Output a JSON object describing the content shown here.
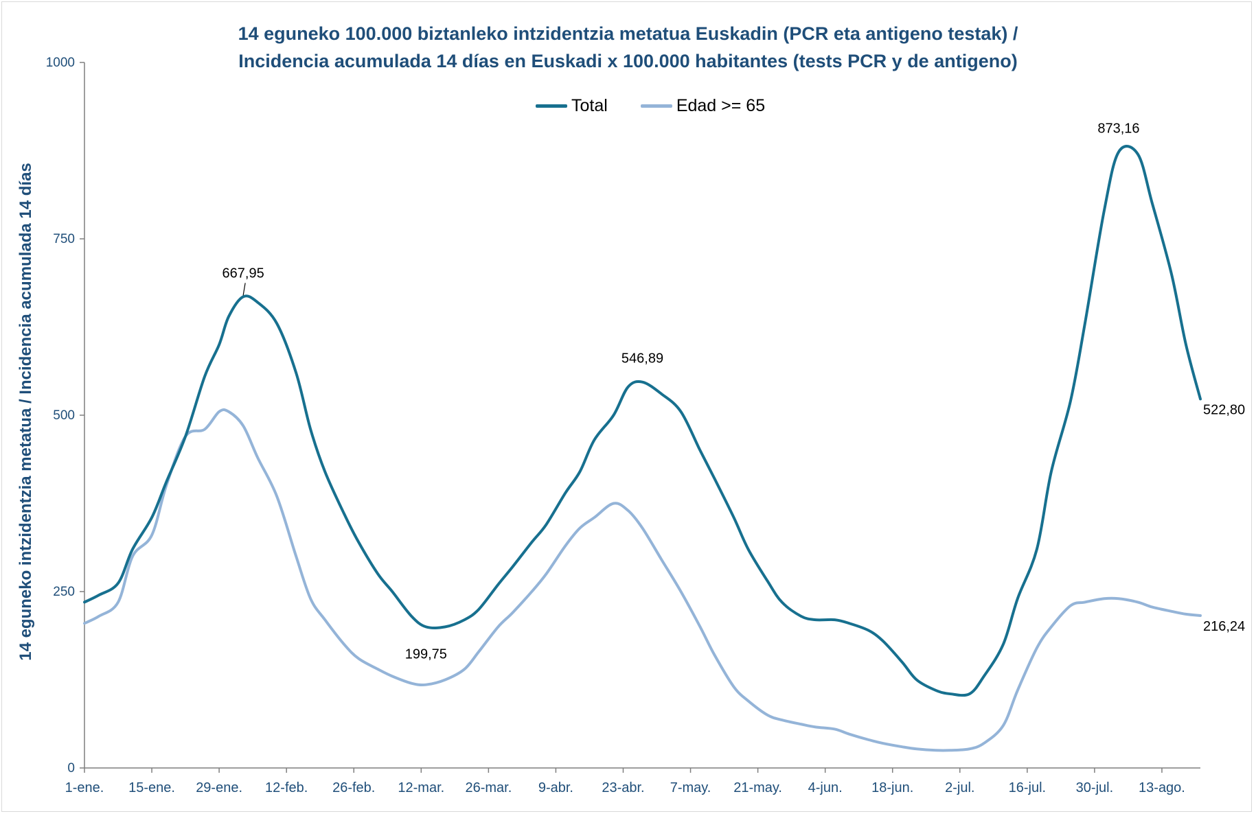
{
  "chart_data": {
    "type": "line",
    "title_line1": "14 eguneko 100.000 biztanleko intzidentzia metatua Euskadin (PCR eta antigeno testak) /",
    "title_line2": "Incidencia acumulada 14 días en Euskadi x 100.000 habitantes (tests PCR y de antigeno)",
    "ylabel": "14 eguneko intzidentzia metatua / Incidencia acumulada 14 días",
    "xlabel": "",
    "ylim": [
      0,
      1000
    ],
    "yticks": [
      "0",
      "250",
      "500",
      "750",
      "1000"
    ],
    "xticks": [
      "1-ene.",
      "15-ene.",
      "29-ene.",
      "12-feb.",
      "26-feb.",
      "12-mar.",
      "26-mar.",
      "9-abr.",
      "23-abr.",
      "7-may.",
      "21-may.",
      "4-jun.",
      "18-jun.",
      "2-jul.",
      "16-jul.",
      "30-jul.",
      "13-ago."
    ],
    "legend_position": "top-center",
    "grid": false,
    "colors": {
      "Total": "#17708f",
      "Edad >= 65": "#94b4d8",
      "axis": "#7f7f7f",
      "title": "#1f4e79"
    },
    "series": [
      {
        "name": "Total",
        "day_offsets": [
          0,
          3,
          7,
          10,
          14,
          17,
          21,
          25,
          28,
          30,
          33,
          36,
          40,
          44,
          47,
          50,
          54,
          57,
          61,
          64,
          68,
          71,
          75,
          79,
          82,
          86,
          89,
          93,
          96,
          100,
          103,
          106,
          110,
          113,
          116,
          120,
          124,
          128,
          131,
          135,
          138,
          142,
          145,
          149,
          152,
          156,
          159,
          163,
          166,
          170,
          173,
          177,
          180,
          184,
          187,
          191,
          194,
          198,
          201,
          205,
          208,
          212,
          215,
          219,
          222,
          226,
          229,
          232
        ],
        "values": [
          235,
          245,
          262,
          310,
          355,
          405,
          470,
          555,
          600,
          640,
          668,
          660,
          630,
          560,
          480,
          420,
          360,
          320,
          275,
          250,
          215,
          200,
          200,
          210,
          225,
          260,
          285,
          320,
          345,
          390,
          420,
          465,
          500,
          540,
          547,
          530,
          505,
          450,
          410,
          355,
          310,
          265,
          235,
          215,
          210,
          210,
          205,
          195,
          180,
          150,
          125,
          110,
          105,
          105,
          130,
          175,
          240,
          310,
          420,
          520,
          630,
          790,
          873,
          870,
          800,
          700,
          600,
          523
        ]
      },
      {
        "name": "Edad >= 65",
        "day_offsets": [
          0,
          3,
          7,
          10,
          14,
          17,
          21,
          25,
          28,
          30,
          33,
          36,
          40,
          44,
          47,
          50,
          54,
          57,
          61,
          64,
          68,
          71,
          75,
          79,
          82,
          86,
          89,
          93,
          96,
          100,
          103,
          106,
          110,
          113,
          116,
          120,
          124,
          128,
          131,
          135,
          138,
          142,
          145,
          149,
          152,
          156,
          159,
          163,
          166,
          170,
          173,
          177,
          180,
          184,
          187,
          191,
          194,
          198,
          201,
          205,
          208,
          212,
          215,
          219,
          222,
          226,
          229,
          232
        ],
        "values": [
          205,
          215,
          235,
          300,
          330,
          400,
          470,
          480,
          505,
          505,
          485,
          440,
          385,
          300,
          240,
          210,
          175,
          155,
          140,
          130,
          120,
          118,
          125,
          140,
          165,
          200,
          220,
          250,
          275,
          315,
          340,
          355,
          375,
          365,
          340,
          295,
          250,
          200,
          160,
          115,
          95,
          75,
          68,
          62,
          58,
          55,
          48,
          40,
          35,
          30,
          27,
          25,
          25,
          27,
          35,
          60,
          110,
          170,
          200,
          230,
          235,
          240,
          240,
          235,
          228,
          222,
          218,
          216
        ]
      }
    ],
    "annotations": [
      {
        "text": "667,95",
        "series": "Total",
        "index": 10,
        "pos": "above"
      },
      {
        "text": "199,75",
        "series": "Total",
        "index": 21,
        "pos": "below"
      },
      {
        "text": "546,89",
        "series": "Total",
        "index": 34,
        "pos": "above"
      },
      {
        "text": "873,16",
        "series": "Total",
        "index": 62,
        "pos": "above"
      },
      {
        "text": "522,80",
        "series": "Total",
        "index": 67,
        "pos": "right"
      },
      {
        "text": "216,24",
        "series": "Edad >= 65",
        "index": 67,
        "pos": "right"
      }
    ]
  }
}
